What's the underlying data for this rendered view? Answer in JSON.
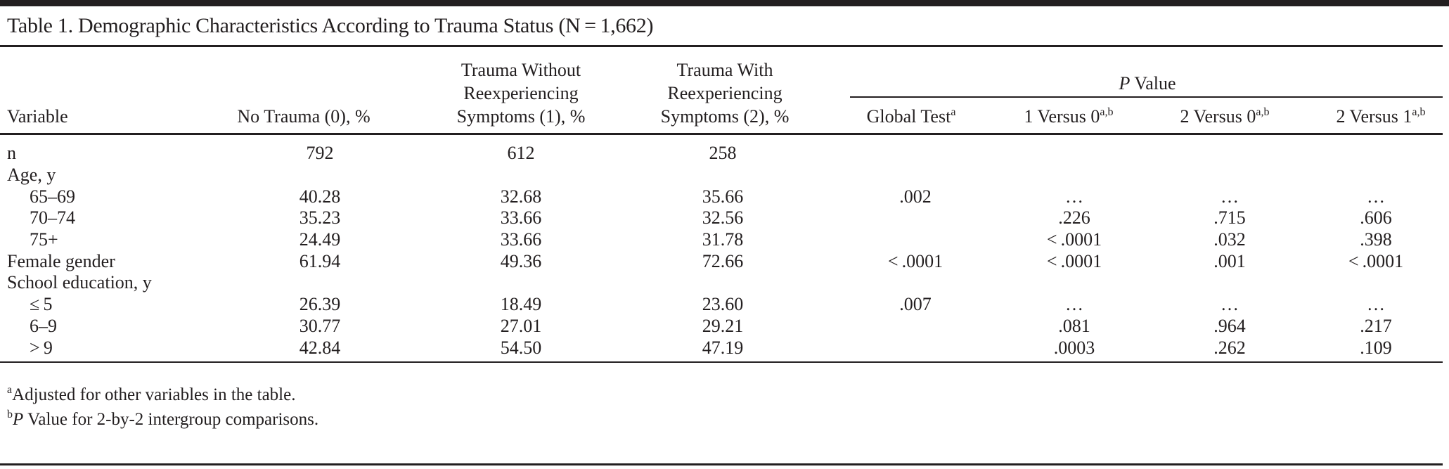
{
  "title": "Table 1. Demographic Characteristics According to Trauma Status (N = 1,662)",
  "headers": {
    "variable": "Variable",
    "col1": "No Trauma (0), %",
    "col2": [
      "Trauma Without",
      "Reexperiencing",
      "Symptoms (1), %"
    ],
    "col3": [
      "Trauma With",
      "Reexperiencing",
      "Symptoms (2),  %"
    ],
    "pvalue_group": {
      "italic": "P",
      "rest": " Value"
    },
    "global": {
      "label": "Global Test",
      "sup": "a"
    },
    "v10": {
      "label": "1 Versus 0",
      "sup": "a,b"
    },
    "v20": {
      "label": "2 Versus 0",
      "sup": "a,b"
    },
    "v21": {
      "label": "2 Versus 1",
      "sup": "a,b"
    }
  },
  "rows": [
    {
      "variable": "n",
      "indent": false,
      "values": [
        "792",
        "612",
        "258",
        "",
        "",
        "",
        ""
      ]
    },
    {
      "variable": "Age, y",
      "indent": false,
      "values": [
        "",
        "",
        "",
        "",
        "",
        "",
        ""
      ]
    },
    {
      "variable": "65–69",
      "indent": true,
      "values": [
        "40.28",
        "32.68",
        "35.66",
        ".002",
        "…",
        "…",
        "…"
      ]
    },
    {
      "variable": "70–74",
      "indent": true,
      "values": [
        "35.23",
        "33.66",
        "32.56",
        "",
        ".226",
        ".715",
        ".606"
      ]
    },
    {
      "variable": "75+",
      "indent": true,
      "values": [
        "24.49",
        "33.66",
        "31.78",
        "",
        "< .0001",
        ".032",
        ".398"
      ]
    },
    {
      "variable": "Female gender",
      "indent": false,
      "values": [
        "61.94",
        "49.36",
        "72.66",
        "< .0001",
        "< .0001",
        ".001",
        "< .0001"
      ]
    },
    {
      "variable": "School education, y",
      "indent": false,
      "values": [
        "",
        "",
        "",
        "",
        "",
        "",
        ""
      ]
    },
    {
      "variable": "≤ 5",
      "indent": true,
      "values": [
        "26.39",
        "18.49",
        "23.60",
        ".007",
        "…",
        "…",
        "…"
      ]
    },
    {
      "variable": "6–9",
      "indent": true,
      "values": [
        "30.77",
        "27.01",
        "29.21",
        "",
        ".081",
        ".964",
        ".217"
      ]
    },
    {
      "variable": "> 9",
      "indent": true,
      "values": [
        "42.84",
        "54.50",
        "47.19",
        "",
        ".0003",
        ".262",
        ".109"
      ]
    }
  ],
  "footnotes": {
    "a": {
      "mark": "a",
      "text": "Adjusted for other variables in the table."
    },
    "b": {
      "mark": "b",
      "italic": "P",
      "text": " Value for 2-by-2 intergroup comparisons."
    }
  }
}
